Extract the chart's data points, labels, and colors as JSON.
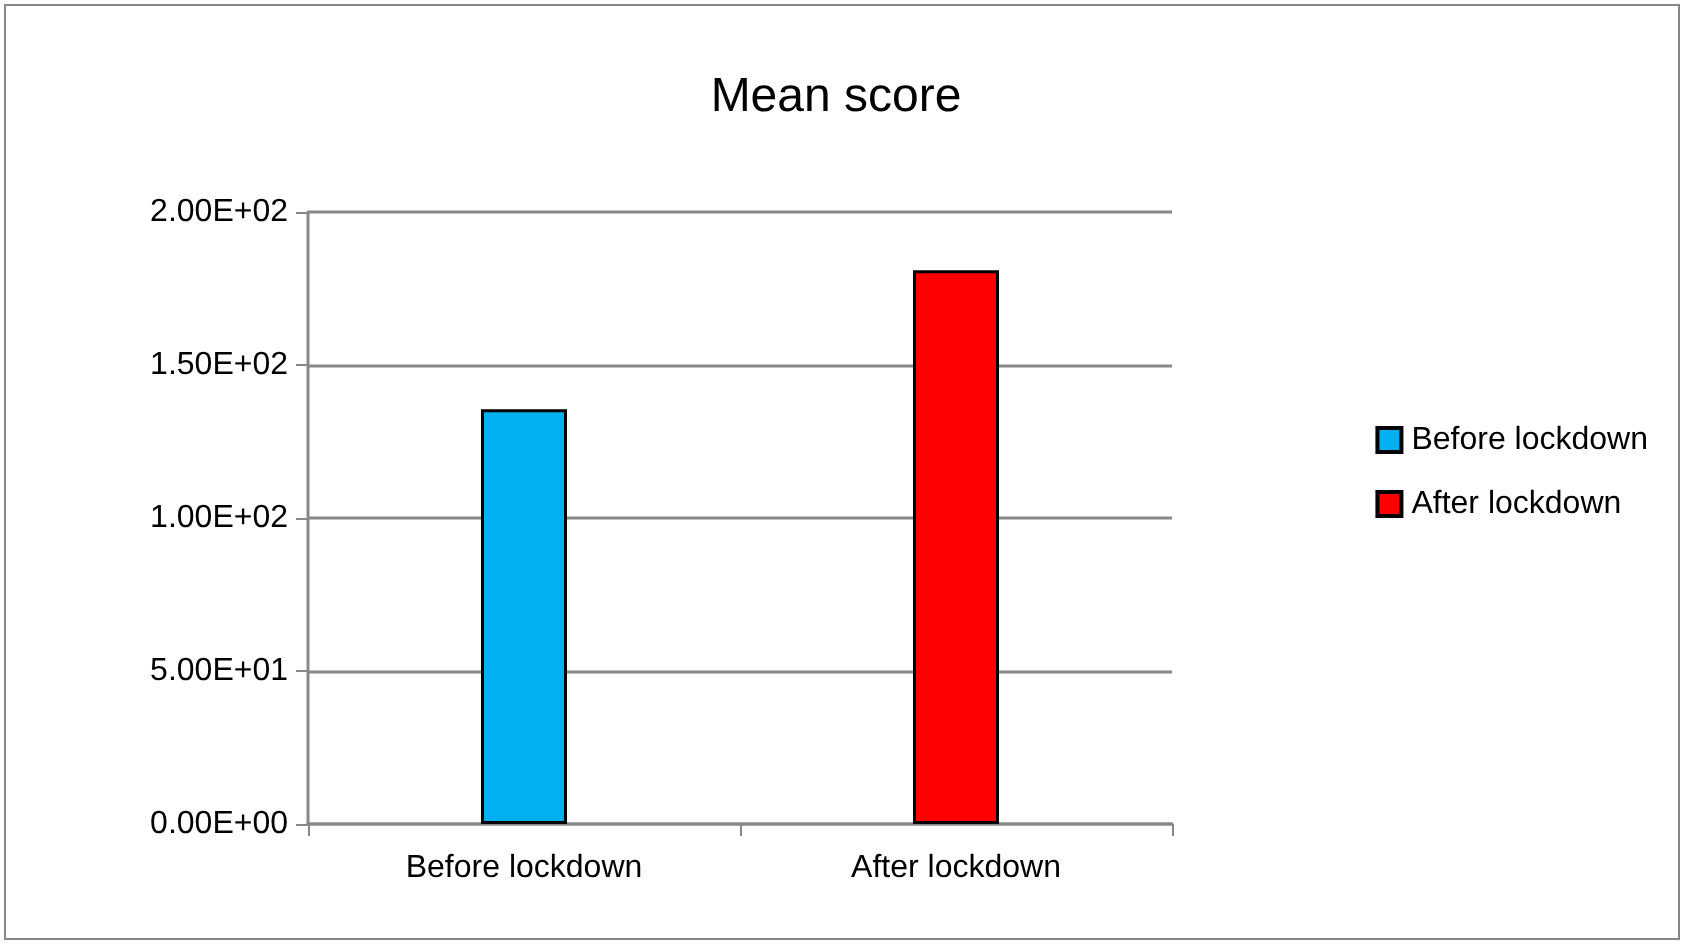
{
  "chart_data": {
    "type": "bar",
    "title": "Mean score",
    "categories": [
      "Before lockdown",
      "After lockdown"
    ],
    "series": [
      {
        "name": "Before lockdown",
        "color": "#00b0f0",
        "values": [
          135.5,
          null
        ]
      },
      {
        "name": "After lockdown",
        "color": "#ff0000",
        "values": [
          null,
          181
        ]
      }
    ],
    "ylim": [
      0,
      200
    ],
    "yticks": [
      {
        "value": 0,
        "label": "0.00E+00"
      },
      {
        "value": 50,
        "label": "5.00E+01"
      },
      {
        "value": 100,
        "label": "1.00E+02"
      },
      {
        "value": 150,
        "label": "1.50E+02"
      },
      {
        "value": 200,
        "label": "2.00E+02"
      }
    ],
    "grid": "y",
    "legend": "right"
  }
}
